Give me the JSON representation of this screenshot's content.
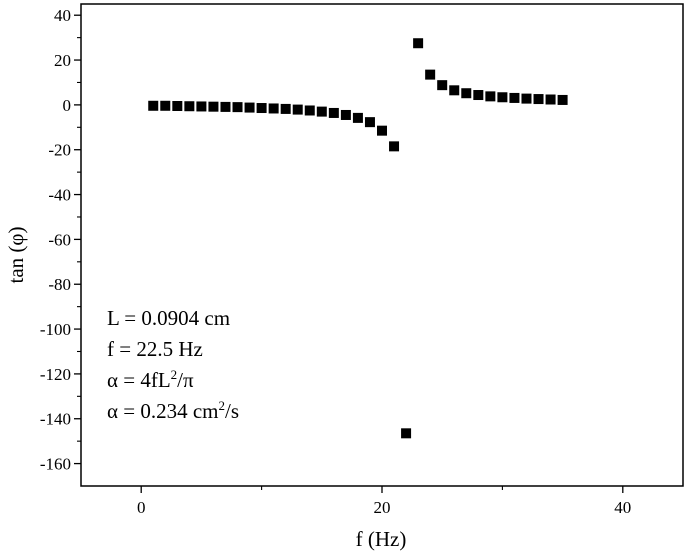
{
  "chart_data": {
    "type": "scatter",
    "title": "",
    "xlabel": "f (Hz)",
    "ylabel": "tan (φ)",
    "xlim": [
      -5,
      45
    ],
    "ylim": [
      -170,
      45
    ],
    "x_ticks": [
      0,
      20,
      40
    ],
    "x_tick_labels": [
      "0",
      "20",
      "40"
    ],
    "y_ticks": [
      40,
      20,
      0,
      -20,
      -40,
      -60,
      -80,
      -100,
      -120,
      -140,
      -160
    ],
    "y_tick_labels": [
      "40",
      "20",
      "0",
      "-20",
      "-40",
      "-60",
      "-80",
      "-100",
      "-120",
      "-140",
      "-160"
    ],
    "grid": false,
    "marker": "square",
    "marker_color": "#000000",
    "series": [
      {
        "x": [
          1,
          2,
          3,
          4,
          5,
          6,
          7,
          8,
          9,
          10,
          11,
          12,
          13,
          14,
          15,
          16,
          17,
          18,
          19,
          20,
          21,
          22,
          23,
          24,
          25,
          26,
          27,
          28,
          29,
          30,
          31,
          32,
          33,
          34,
          35
        ],
        "y": [
          -0.4,
          -0.4,
          -0.5,
          -0.6,
          -0.7,
          -0.8,
          -0.9,
          -1.0,
          -1.2,
          -1.4,
          -1.6,
          -1.8,
          -2.1,
          -2.5,
          -3.0,
          -3.6,
          -4.5,
          -5.8,
          -7.7,
          -11.5,
          -18.5,
          -146.5,
          27.5,
          13.5,
          8.8,
          6.5,
          5.2,
          4.4,
          3.8,
          3.4,
          3.1,
          2.8,
          2.6,
          2.4,
          2.2
        ]
      }
    ],
    "annotations": {
      "line1_main": "L = 0.0904 cm",
      "line2_main": "f = 22.5 Hz",
      "line3_main": "α = 4fL",
      "line3_sup": "2",
      "line3_tail": "/π",
      "line4_main": "α = 0.234 cm",
      "line4_sup": "2",
      "line4_tail": "/s"
    }
  }
}
